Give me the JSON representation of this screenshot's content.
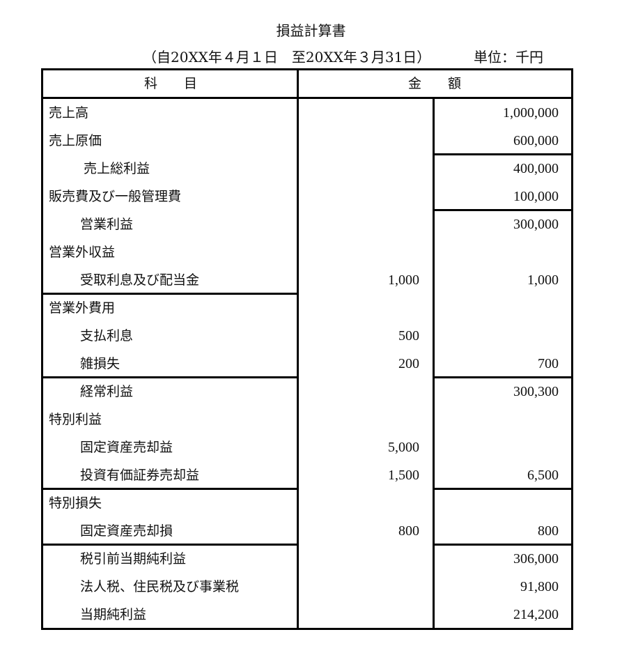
{
  "title": "損益計算書",
  "period": "（自20XX年４月１日　至20XX年３月31日）",
  "unit": "単位：千円",
  "headers": {
    "item": "科　　目",
    "amount": "金　　額"
  },
  "rows": [
    {
      "label": "売上高",
      "indent": 0,
      "mid": "",
      "right": "1,000,000"
    },
    {
      "label": "売上原価",
      "indent": 0,
      "mid": "",
      "right": "600,000"
    },
    {
      "label": "売上総利益",
      "indent": 2,
      "mid": "",
      "right": "400,000"
    },
    {
      "label": "販売費及び一般管理費",
      "indent": 0,
      "mid": "",
      "right": "100,000"
    },
    {
      "label": "営業利益",
      "indent": 1,
      "mid": "",
      "right": "300,000"
    },
    {
      "label": "営業外収益",
      "indent": 0,
      "mid": "",
      "right": ""
    },
    {
      "label": "受取利息及び配当金",
      "indent": 1,
      "mid": "1,000",
      "right": "1,000"
    },
    {
      "label": "営業外費用",
      "indent": 0,
      "mid": "",
      "right": ""
    },
    {
      "label": "支払利息",
      "indent": 1,
      "mid": "500",
      "right": ""
    },
    {
      "label": "雑損失",
      "indent": 1,
      "mid": "200",
      "right": "700"
    },
    {
      "label": "経常利益",
      "indent": 1,
      "mid": "",
      "right": "300,300"
    },
    {
      "label": "特別利益",
      "indent": 0,
      "mid": "",
      "right": ""
    },
    {
      "label": "固定資産売却益",
      "indent": 1,
      "mid": "5,000",
      "right": ""
    },
    {
      "label": "投資有価証券売却益",
      "indent": 1,
      "mid": "1,500",
      "right": "6,500"
    },
    {
      "label": "特別損失",
      "indent": 0,
      "mid": "",
      "right": ""
    },
    {
      "label": "固定資産売却損",
      "indent": 1,
      "mid": "800",
      "right": "800"
    },
    {
      "label": "税引前当期純利益",
      "indent": 1,
      "mid": "",
      "right": "306,000"
    },
    {
      "label": "法人税、住民税及び事業税",
      "indent": 1,
      "mid": "",
      "right": "91,800"
    },
    {
      "label": "当期純利益",
      "indent": 1,
      "mid": "",
      "right": "214,200"
    }
  ]
}
